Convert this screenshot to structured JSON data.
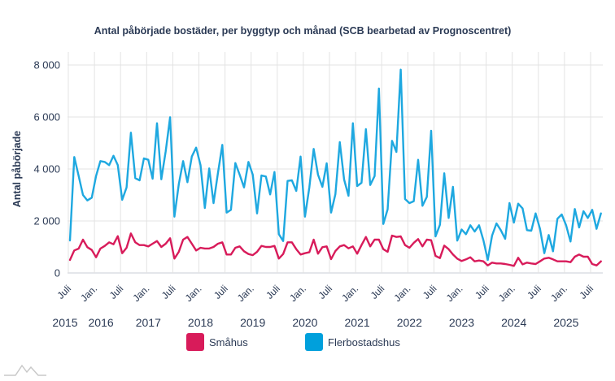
{
  "chart_data": {
    "type": "line",
    "title": "Antal påbörjade bostäder, per byggtyp och månad (SCB bearbetad av Prognoscentret)",
    "xlabel": "",
    "ylabel": "Antal påbörjade",
    "ylim": [
      0,
      8000
    ],
    "yticks": [
      0,
      2000,
      4000,
      6000,
      8000
    ],
    "ytick_labels": [
      "0",
      "2 000",
      "4 000",
      "6 000",
      "8 000"
    ],
    "x_start": "Juli 2015",
    "x_end": "September 2025",
    "x_interval": "monthly",
    "xtick_labels": [
      "Juli",
      "Jan.",
      "Juli",
      "Jan.",
      "Juli",
      "Jan.",
      "Juli",
      "Jan.",
      "Juli",
      "Jan.",
      "Juli",
      "Jan.",
      "Juli",
      "Jan.",
      "Juli",
      "Jan.",
      "Juli",
      "Jan.",
      "Juli",
      "Jan.",
      "Juli"
    ],
    "year_labels": [
      "2015",
      "2016",
      "2017",
      "2018",
      "2019",
      "2020",
      "2021",
      "2022",
      "2023",
      "2024",
      "2025"
    ],
    "grid": true,
    "legend_position": "bottom",
    "series": [
      {
        "name": "Småhus",
        "color": "#d81b5a",
        "values": [
          500,
          865,
          937,
          1281,
          990,
          885,
          604,
          937,
          1041,
          1177,
          1104,
          1416,
          760,
          969,
          1520,
          1177,
          1073,
          1073,
          1021,
          1125,
          1229,
          1000,
          1125,
          1333,
          552,
          812,
          1281,
          1385,
          1125,
          865,
          969,
          941,
          941,
          1000,
          1125,
          1177,
          708,
          708,
          969,
          1021,
          833,
          729,
          684,
          812,
          1041,
          1000,
          1000,
          1041,
          552,
          729,
          1177,
          1177,
          916,
          708,
          760,
          800,
          1281,
          740,
          990,
          1021,
          531,
          844,
          1021,
          1073,
          948,
          1021,
          740,
          1073,
          1385,
          1021,
          1281,
          1281,
          917,
          812,
          1437,
          1385,
          1406,
          1073,
          969,
          1156,
          1302,
          1021,
          1281,
          1260,
          656,
          573,
          1052,
          917,
          708,
          550,
          460,
          521,
          604,
          448,
          479,
          448,
          292,
          396,
          365,
          365,
          344,
          312,
          271,
          583,
          330,
          396,
          365,
          344,
          448,
          552,
          583,
          521,
          448,
          448,
          448,
          417,
          625,
          708,
          625,
          625,
          344,
          292,
          448
        ]
      },
      {
        "name": "Flerbostadshus",
        "color": "#1ea8e0",
        "values": [
          1250,
          4458,
          3730,
          3000,
          2790,
          2896,
          3730,
          4302,
          4270,
          4146,
          4510,
          4146,
          2812,
          3290,
          5396,
          3646,
          3562,
          4406,
          4354,
          3625,
          5760,
          3604,
          4680,
          5990,
          2167,
          3417,
          4302,
          3490,
          4479,
          4823,
          4146,
          2500,
          4021,
          2687,
          3840,
          4927,
          2323,
          2427,
          4229,
          3781,
          3290,
          4271,
          3781,
          2292,
          3750,
          3708,
          3021,
          3885,
          1490,
          1229,
          3542,
          3562,
          3156,
          4479,
          2167,
          3300,
          4771,
          3781,
          3312,
          4219,
          2323,
          3031,
          5031,
          3594,
          2969,
          5760,
          3344,
          3469,
          5531,
          3385,
          3729,
          7094,
          1885,
          2448,
          5083,
          4656,
          7823,
          2844,
          2687,
          2760,
          4354,
          2583,
          2927,
          5469,
          1406,
          1854,
          3833,
          2115,
          3312,
          1245,
          1672,
          1490,
          1833,
          1594,
          1833,
          1250,
          500,
          1437,
          1906,
          1646,
          1312,
          2687,
          1937,
          2667,
          2480,
          1646,
          1625,
          2292,
          1698,
          760,
          1458,
          833,
          2083,
          2250,
          1833,
          1208,
          2458,
          1750,
          2375,
          2115,
          2427,
          1698,
          2292
        ]
      }
    ]
  },
  "legend": {
    "items": [
      {
        "label": "Småhus",
        "color": "#d81b5a"
      },
      {
        "label": "Flerbostadshus",
        "color": "#00a0dc"
      }
    ]
  },
  "logo": {
    "icon": "mountain-logo-icon"
  }
}
